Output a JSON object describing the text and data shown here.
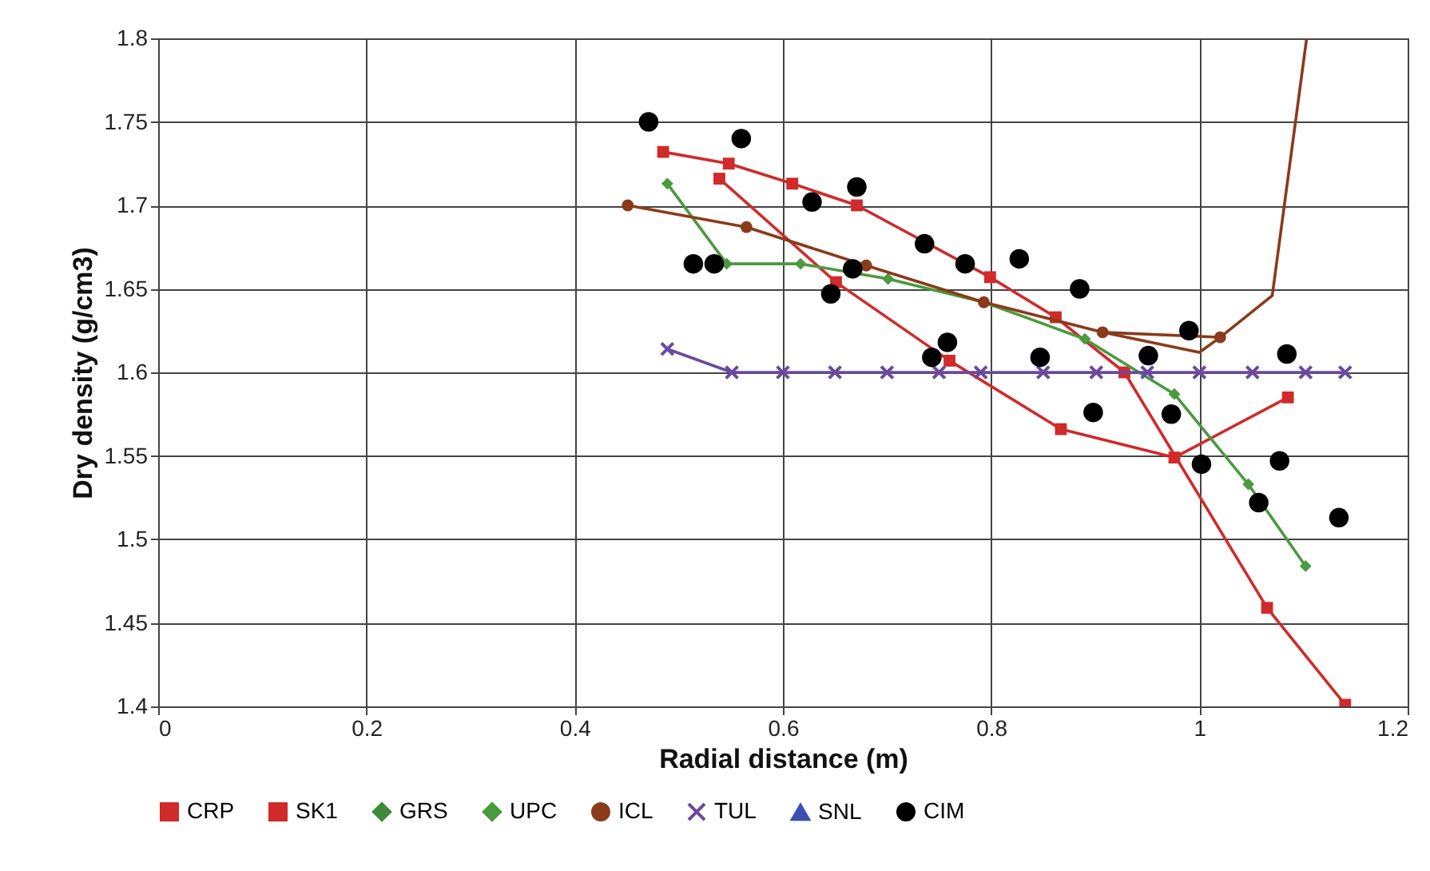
{
  "chart_data": {
    "type": "line",
    "xlabel": "Radial distance (m)",
    "ylabel": "Dry density  (g/cm3)",
    "xlim": [
      0,
      1.2
    ],
    "xticks": [
      0,
      0.2,
      0.4,
      0.6,
      0.8,
      1,
      1.2
    ],
    "ylim": [
      1.4,
      1.8
    ],
    "yticks": [
      1.4,
      1.45,
      1.5,
      1.55,
      1.6,
      1.65,
      1.7,
      1.75,
      1.8
    ],
    "grid": true,
    "legend": "bottom",
    "series": [
      {
        "name": "CRP",
        "color": "#d02a2a",
        "marker": "square",
        "x": [
          0.539,
          0.651,
          0.76,
          0.867,
          0.976,
          1.085
        ],
        "values": [
          1.716,
          1.654,
          1.607,
          1.566,
          1.549,
          1.585
        ]
      },
      {
        "name": "SK1",
        "color": "#d02a2a",
        "marker": "square",
        "x": [
          0.485,
          0.548,
          0.609,
          0.671,
          0.735,
          0.799,
          0.862,
          0.928,
          1.065,
          1.14
        ],
        "values": [
          1.732,
          1.725,
          1.713,
          1.7,
          null,
          1.657,
          1.633,
          1.6,
          1.459,
          1.401
        ]
      },
      {
        "name": "GRS",
        "color": "#3f8a3a",
        "marker": "diamond"
      },
      {
        "name": "UPC",
        "color": "#4a9a3e",
        "marker": "diamond",
        "x": [
          0.489,
          0.546,
          0.617,
          0.701,
          0.793,
          0.89,
          0.976,
          1.047,
          1.102
        ],
        "values": [
          1.713,
          1.665,
          1.665,
          1.656,
          1.642,
          1.62,
          1.587,
          1.533,
          1.484
        ]
      },
      {
        "name": "ICL",
        "color": "#8b3a1a",
        "marker": "circle",
        "x": [
          0.451,
          0.565,
          0.68,
          0.793,
          0.907,
          1.02
        ],
        "values": [
          1.7,
          1.687,
          1.664,
          1.642,
          1.624,
          1.621
        ]
      },
      {
        "color": "#8b3a1a",
        "marker": "none",
        "x": [
          0.907,
          1.0,
          1.02,
          1.07,
          1.103
        ],
        "values": [
          1.624,
          1.612,
          1.621,
          1.646,
          1.8
        ]
      },
      {
        "name": "TUL",
        "color": "#6a4a9e",
        "marker": "cross",
        "x": [
          0.489,
          0.551,
          0.6,
          0.65,
          0.7,
          0.75,
          0.79,
          0.85,
          0.901,
          0.95,
          1.0,
          1.051,
          1.102,
          1.14
        ],
        "values": [
          1.614,
          1.6,
          1.6,
          1.6,
          1.6,
          1.6,
          1.6,
          1.6,
          1.6,
          1.6,
          1.6,
          1.6,
          1.6,
          1.6
        ]
      },
      {
        "name": "SNL",
        "color": "#3a50b0",
        "marker": "triangle"
      },
      {
        "name": "CIM",
        "type": "scatter",
        "color": "#000000",
        "marker": "circle",
        "x": [
          0.471,
          0.56,
          0.514,
          0.534,
          0.628,
          0.671,
          0.667,
          0.646,
          0.736,
          0.775,
          0.827,
          0.885,
          0.99,
          1.084,
          0.847,
          0.951,
          0.758,
          0.743,
          0.898,
          0.973,
          1.002,
          1.077,
          1.057,
          1.134
        ],
        "values": [
          1.75,
          1.74,
          1.665,
          1.665,
          1.702,
          1.711,
          1.662,
          1.647,
          1.677,
          1.665,
          1.668,
          1.65,
          1.625,
          1.611,
          1.609,
          1.61,
          1.618,
          1.609,
          1.576,
          1.575,
          1.545,
          1.547,
          1.522,
          1.513
        ]
      }
    ]
  }
}
